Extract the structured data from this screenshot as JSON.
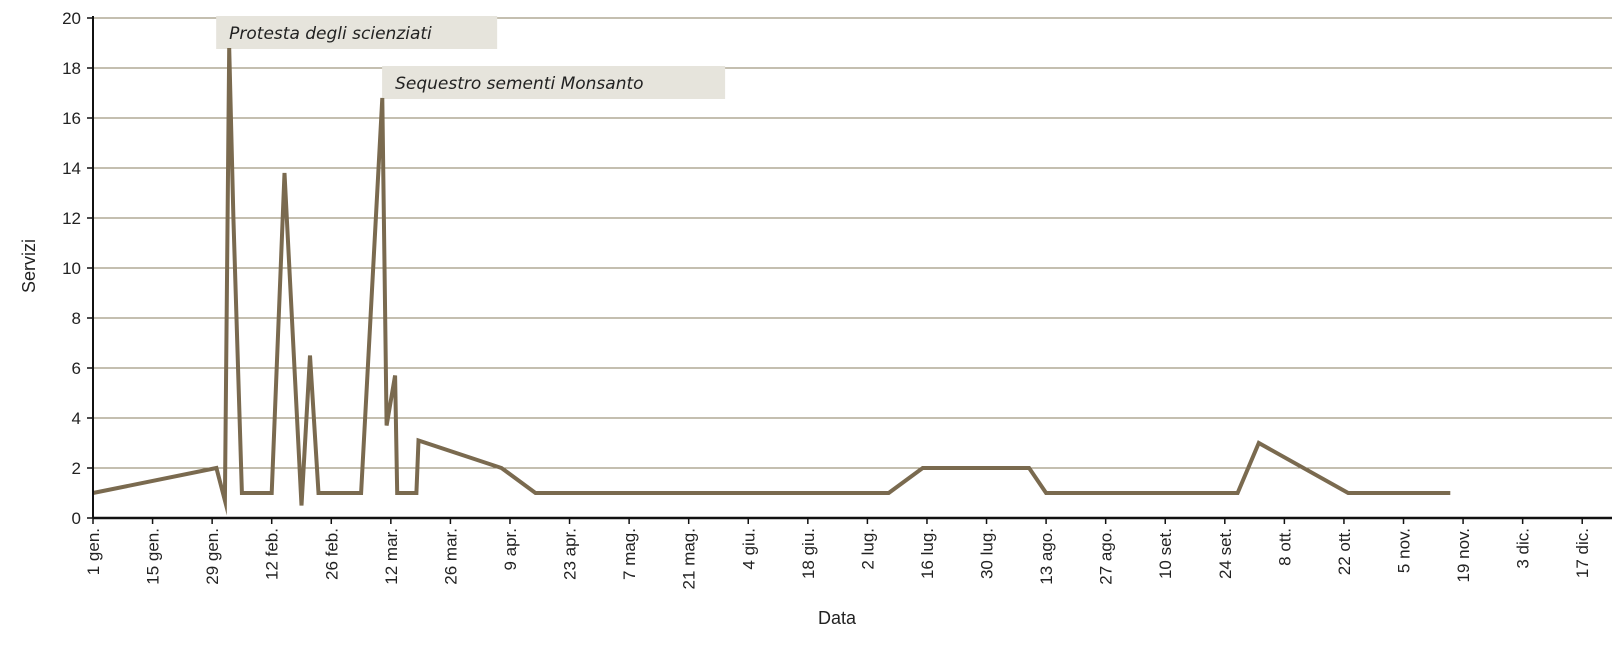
{
  "chart_data": {
    "type": "line",
    "title": "",
    "xlabel": "Data",
    "ylabel": "Servizi",
    "ylim": [
      0,
      20
    ],
    "yticks": [
      0,
      2,
      4,
      6,
      8,
      10,
      12,
      14,
      16,
      18,
      20
    ],
    "grid": "horizontal",
    "line_color": "#7a6a4f",
    "xtick_labels": [
      "1 gen.",
      "15 gen.",
      "29 gen.",
      "12 feb.",
      "26 feb.",
      "12 mar.",
      "26 mar.",
      "9 apr.",
      "23 apr.",
      "7 mag.",
      "21 mag.",
      "4 giu.",
      "18 giu.",
      "2 lug.",
      "16 lug.",
      "30 lug.",
      "13 ago.",
      "27 ago.",
      "10 set.",
      "24 set.",
      "8 ott.",
      "22 ott.",
      "5 nov.",
      "19 nov.",
      "3 dic.",
      "17 dic."
    ],
    "xtick_days": [
      1,
      15,
      29,
      43,
      57,
      71,
      85,
      99,
      113,
      127,
      141,
      155,
      169,
      183,
      197,
      211,
      225,
      239,
      253,
      267,
      281,
      295,
      309,
      323,
      337,
      351
    ],
    "series": [
      {
        "name": "",
        "points": [
          [
            1,
            1
          ],
          [
            30,
            2
          ],
          [
            32,
            0.7
          ],
          [
            33,
            18.8
          ],
          [
            34,
            12
          ],
          [
            36,
            1
          ],
          [
            43,
            1
          ],
          [
            46,
            13.8
          ],
          [
            50,
            0.5
          ],
          [
            52,
            6.5
          ],
          [
            54,
            1
          ],
          [
            64,
            1
          ],
          [
            69,
            16.8
          ],
          [
            70,
            3.7
          ],
          [
            72,
            5.7
          ],
          [
            72.5,
            1
          ],
          [
            77,
            1
          ],
          [
            77.5,
            3.1
          ],
          [
            97,
            2
          ],
          [
            105,
            1
          ],
          [
            188,
            1
          ],
          [
            196,
            2
          ],
          [
            216,
            2
          ],
          [
            221,
            2
          ],
          [
            225,
            1
          ],
          [
            270,
            1
          ],
          [
            275,
            3
          ],
          [
            296,
            1
          ],
          [
            320,
            1
          ]
        ]
      }
    ],
    "annotations": [
      {
        "text": "Protesta degli scienziati",
        "x": 33,
        "y": 19.0
      },
      {
        "text": "Sequestro sementi Monsanto",
        "x": 72,
        "y": 17.0
      }
    ]
  }
}
